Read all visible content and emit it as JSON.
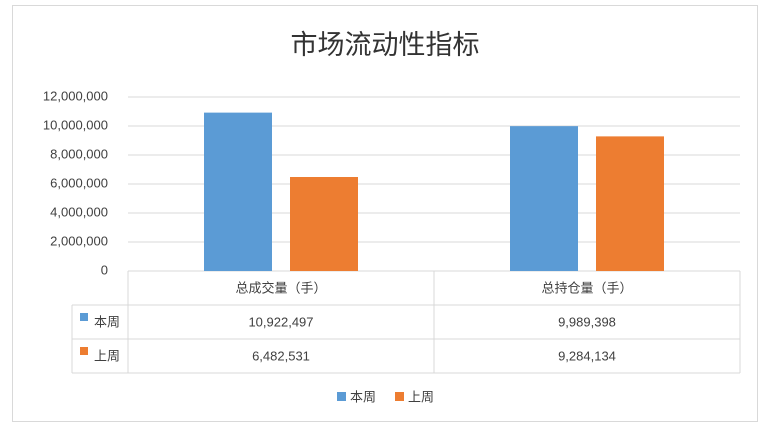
{
  "chart_data": {
    "type": "bar",
    "title": "市场流动性指标",
    "categories": [
      "总成交量（手）",
      "总持仓量（手）"
    ],
    "series": [
      {
        "name": "本周",
        "color": "#5b9bd5",
        "values": [
          10922497,
          9989398
        ],
        "value_labels": [
          "10,922,497",
          "9,989,398"
        ]
      },
      {
        "name": "上周",
        "color": "#ed7d31",
        "values": [
          6482531,
          9284134
        ],
        "value_labels": [
          "6,482,531",
          "9,284,134"
        ]
      }
    ],
    "ylim": [
      0,
      12000000
    ],
    "yticks": [
      0,
      {
        "value": 2000000,
        "label": "2,000,000"
      },
      {
        "value": 4000000,
        "label": "4,000,000"
      },
      {
        "value": 6000000,
        "label": "6,000,000"
      },
      {
        "value": 8000000,
        "label": "8,000,000"
      },
      {
        "value": 10000000,
        "label": "10,000,000"
      },
      {
        "value": 12000000,
        "label": "12,000,000"
      }
    ],
    "grid": true,
    "legend": "bottom"
  }
}
